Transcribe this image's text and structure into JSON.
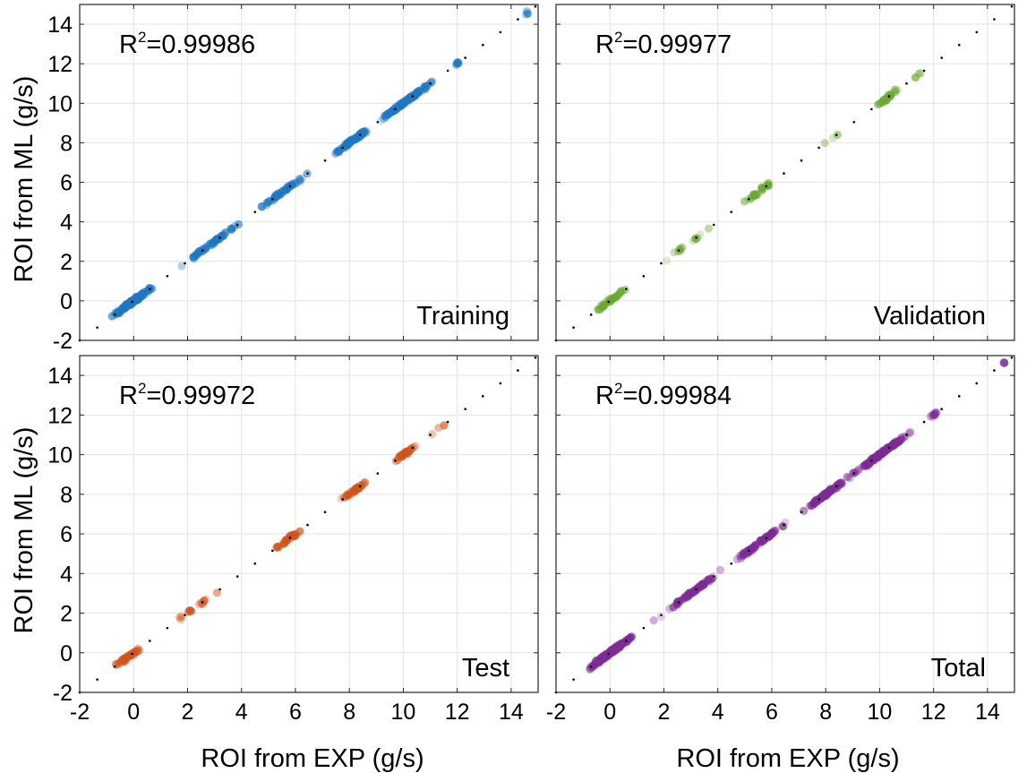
{
  "figure": {
    "xlabel": "ROI from EXP (g/s)",
    "ylabel": "ROI from ML (g/s)"
  },
  "chart_data": [
    {
      "type": "scatter",
      "panel": "top-left",
      "label": "Training",
      "r2_prefix": "R",
      "r2_sup": "2",
      "r2_value": "=0.99986",
      "color": "#1f77c4",
      "xlim": [
        -2,
        15
      ],
      "ylim": [
        -2,
        15
      ],
      "xticks": [
        "-2",
        "0",
        "2",
        "4",
        "6",
        "8",
        "10",
        "12",
        "14"
      ],
      "yticks": [
        "-2",
        "0",
        "2",
        "4",
        "6",
        "8",
        "10",
        "12",
        "14"
      ],
      "grid": true,
      "reference_line": "y = x (dotted)",
      "clusters": [
        {
          "x": 0,
          "spread": 0.9,
          "n": 160
        },
        {
          "x": 3,
          "spread": 1.4,
          "n": 60
        },
        {
          "x": 5.5,
          "spread": 1.2,
          "n": 60
        },
        {
          "x": 8,
          "spread": 0.9,
          "n": 80
        },
        {
          "x": 10,
          "spread": 1.4,
          "n": 120
        },
        {
          "x": 12,
          "spread": 0.1,
          "n": 8
        },
        {
          "x": 14.6,
          "spread": 0.1,
          "n": 4
        }
      ]
    },
    {
      "type": "scatter",
      "panel": "top-right",
      "label": "Validation",
      "r2_prefix": "R",
      "r2_sup": "2",
      "r2_value": "=0.99977",
      "color": "#6aa832",
      "xlim": [
        -2,
        15
      ],
      "ylim": [
        -2,
        15
      ],
      "xticks": [
        "-2",
        "0",
        "2",
        "4",
        "6",
        "8",
        "10",
        "12",
        "14"
      ],
      "yticks": [
        "-2",
        "0",
        "2",
        "4",
        "6",
        "8",
        "10",
        "12",
        "14"
      ],
      "grid": true,
      "reference_line": "y = x (dotted)",
      "clusters": [
        {
          "x": 0,
          "spread": 0.8,
          "n": 45
        },
        {
          "x": 3,
          "spread": 1.8,
          "n": 14
        },
        {
          "x": 5.5,
          "spread": 0.6,
          "n": 30
        },
        {
          "x": 8.2,
          "spread": 0.4,
          "n": 3
        },
        {
          "x": 10.3,
          "spread": 0.6,
          "n": 28
        },
        {
          "x": 11.5,
          "spread": 0.3,
          "n": 4
        }
      ]
    },
    {
      "type": "scatter",
      "panel": "bottom-left",
      "label": "Test",
      "r2_prefix": "R",
      "r2_sup": "2",
      "r2_value": "=0.99972",
      "color": "#d2541c",
      "xlim": [
        -2,
        15
      ],
      "ylim": [
        -2,
        15
      ],
      "xticks": [
        "-2",
        "0",
        "2",
        "4",
        "6",
        "8",
        "10",
        "12",
        "14"
      ],
      "yticks": [
        "-2",
        "0",
        "2",
        "4",
        "6",
        "8",
        "10",
        "12",
        "14"
      ],
      "grid": true,
      "reference_line": "y = x (dotted)",
      "clusters": [
        {
          "x": -0.2,
          "spread": 0.7,
          "n": 40
        },
        {
          "x": 2.2,
          "spread": 1.6,
          "n": 18
        },
        {
          "x": 5.7,
          "spread": 0.7,
          "n": 40
        },
        {
          "x": 8.2,
          "spread": 0.6,
          "n": 40
        },
        {
          "x": 10.1,
          "spread": 0.5,
          "n": 40
        },
        {
          "x": 11.3,
          "spread": 0.5,
          "n": 6
        }
      ]
    },
    {
      "type": "scatter",
      "panel": "bottom-right",
      "label": "Total",
      "r2_prefix": "R",
      "r2_sup": "2",
      "r2_value": "=0.99984",
      "color": "#7e2b96",
      "xlim": [
        -2,
        15
      ],
      "ylim": [
        -2,
        15
      ],
      "xticks": [
        "-2",
        "0",
        "2",
        "4",
        "6",
        "8",
        "10",
        "12",
        "14"
      ],
      "yticks": [
        "-2",
        "0",
        "2",
        "4",
        "6",
        "8",
        "10",
        "12",
        "14"
      ],
      "grid": true,
      "reference_line": "y = x (dotted)",
      "clusters": [
        {
          "x": 0,
          "spread": 1.0,
          "n": 200
        },
        {
          "x": 3,
          "spread": 1.5,
          "n": 80
        },
        {
          "x": 5.5,
          "spread": 1.2,
          "n": 80
        },
        {
          "x": 8,
          "spread": 0.9,
          "n": 90
        },
        {
          "x": 10,
          "spread": 1.4,
          "n": 140
        },
        {
          "x": 12,
          "spread": 0.2,
          "n": 10
        },
        {
          "x": 14.6,
          "spread": 0.1,
          "n": 4
        }
      ]
    }
  ]
}
